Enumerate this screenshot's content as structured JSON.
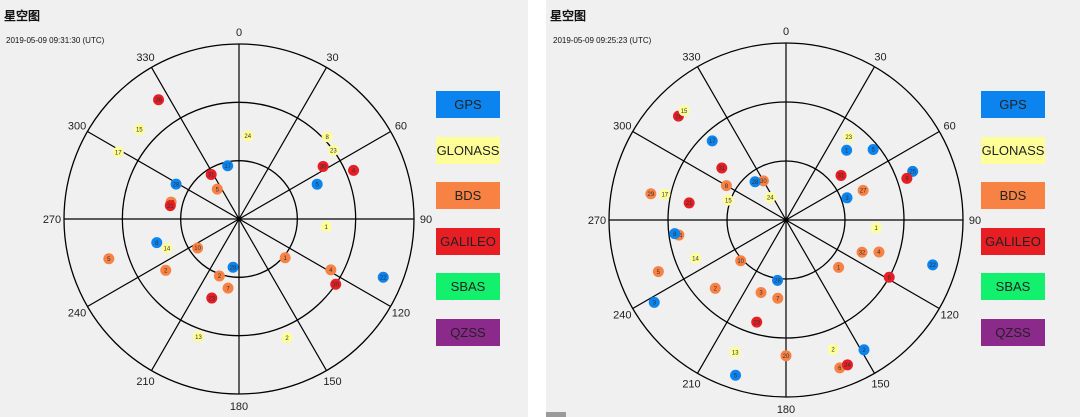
{
  "left": {
    "title": "星空图",
    "timestamp": "2019-05-09 09:31:30 (UTC)",
    "satellites": [
      {
        "id": "24",
        "system": "GLONASS",
        "azimuth": 6,
        "elevation": 47
      },
      {
        "id": "17",
        "system": "GPS",
        "azimuth": 348,
        "elevation": 62
      },
      {
        "id": "28",
        "system": "GPS",
        "azimuth": 299,
        "elevation": 53
      },
      {
        "id": "31",
        "system": "GALILEO",
        "azimuth": 328,
        "elevation": 63
      },
      {
        "id": "5",
        "system": "BDS",
        "azimuth": 324,
        "elevation": 71
      },
      {
        "id": "26",
        "system": "GALILEO",
        "azimuth": 326,
        "elevation": 16
      },
      {
        "id": "15",
        "system": "GLONASS",
        "azimuth": 312,
        "elevation": 21
      },
      {
        "id": "17",
        "system": "GLONASS",
        "azimuth": 299,
        "elevation": 19
      },
      {
        "id": "13",
        "system": "BDS",
        "azimuth": 284,
        "elevation": 54
      },
      {
        "id": "21",
        "system": "GALILEO",
        "azimuth": 281,
        "elevation": 54
      },
      {
        "id": "8",
        "system": "GPS",
        "azimuth": 254,
        "elevation": 46
      },
      {
        "id": "14",
        "system": "GLONASS",
        "azimuth": 248,
        "elevation": 50
      },
      {
        "id": "5",
        "system": "BDS",
        "azimuth": 253,
        "elevation": 20
      },
      {
        "id": "10",
        "system": "BDS",
        "azimuth": 235,
        "elevation": 64
      },
      {
        "id": "2",
        "system": "BDS",
        "azimuth": 235,
        "elevation": 44
      },
      {
        "id": "28",
        "system": "GPS",
        "azimuth": 187,
        "elevation": 65
      },
      {
        "id": "2",
        "system": "BDS",
        "azimuth": 199,
        "elevation": 59
      },
      {
        "id": "7",
        "system": "BDS",
        "azimuth": 189,
        "elevation": 54
      },
      {
        "id": "23",
        "system": "GALILEO",
        "azimuth": 199,
        "elevation": 47
      },
      {
        "id": "13",
        "system": "GLONASS",
        "azimuth": 199,
        "elevation": 26
      },
      {
        "id": "2",
        "system": "GLONASS",
        "azimuth": 158,
        "elevation": 24
      },
      {
        "id": "1",
        "system": "BDS",
        "azimuth": 130,
        "elevation": 59
      },
      {
        "id": "4",
        "system": "BDS",
        "azimuth": 119,
        "elevation": 36
      },
      {
        "id": "30",
        "system": "GALILEO",
        "azimuth": 124,
        "elevation": 30
      },
      {
        "id": "22",
        "system": "GPS",
        "azimuth": 112,
        "elevation": 10
      },
      {
        "id": "1",
        "system": "GLONASS",
        "azimuth": 95,
        "elevation": 45
      },
      {
        "id": "8",
        "system": "GLONASS",
        "azimuth": 47,
        "elevation": 28
      },
      {
        "id": "23",
        "system": "GLONASS",
        "azimuth": 54,
        "elevation": 30
      },
      {
        "id": "30",
        "system": "GALILEO",
        "azimuth": 58,
        "elevation": 39
      },
      {
        "id": "5",
        "system": "GPS",
        "azimuth": 66,
        "elevation": 46
      },
      {
        "id": "4",
        "system": "GALILEO",
        "azimuth": 67,
        "elevation": 26
      }
    ]
  },
  "right": {
    "title": "星空图",
    "timestamp": "2019-05-09 09:25:23 (UTC)",
    "satellites": [
      {
        "id": "24",
        "system": "GLONASS",
        "azimuth": 325,
        "elevation": 76
      },
      {
        "id": "30",
        "system": "BDS",
        "azimuth": 330,
        "elevation": 67
      },
      {
        "id": "17",
        "system": "GPS",
        "azimuth": 317,
        "elevation": 35
      },
      {
        "id": "15",
        "system": "GLONASS",
        "azimuth": 289,
        "elevation": 59
      },
      {
        "id": "31",
        "system": "GALILEO",
        "azimuth": 309,
        "elevation": 48
      },
      {
        "id": "8",
        "system": "BDS",
        "azimuth": 300,
        "elevation": 55
      },
      {
        "id": "28",
        "system": "GPS",
        "azimuth": 321,
        "elevation": 65
      },
      {
        "id": "26",
        "system": "GALILEO",
        "azimuth": 314,
        "elevation": 14
      },
      {
        "id": "15",
        "system": "GLONASS",
        "azimuth": 317,
        "elevation": 14
      },
      {
        "id": "17",
        "system": "GLONASS",
        "azimuth": 282,
        "elevation": 27
      },
      {
        "id": "29",
        "system": "BDS",
        "azimuth": 281,
        "elevation": 20
      },
      {
        "id": "21",
        "system": "GALILEO",
        "azimuth": 280,
        "elevation": 40
      },
      {
        "id": "34",
        "system": "BDS",
        "azimuth": 262,
        "elevation": 35
      },
      {
        "id": "8",
        "system": "GPS",
        "azimuth": 263,
        "elevation": 33
      },
      {
        "id": "14",
        "system": "GLONASS",
        "azimuth": 247,
        "elevation": 40
      },
      {
        "id": "5",
        "system": "BDS",
        "azimuth": 248,
        "elevation": 20
      },
      {
        "id": "3",
        "system": "GPS",
        "azimuth": 238,
        "elevation": 11
      },
      {
        "id": "10",
        "system": "BDS",
        "azimuth": 228,
        "elevation": 59
      },
      {
        "id": "2",
        "system": "BDS",
        "azimuth": 226,
        "elevation": 40
      },
      {
        "id": "28",
        "system": "GPS",
        "azimuth": 188,
        "elevation": 59
      },
      {
        "id": "3",
        "system": "BDS",
        "azimuth": 199,
        "elevation": 51
      },
      {
        "id": "7",
        "system": "BDS",
        "azimuth": 186,
        "elevation": 50
      },
      {
        "id": "23",
        "system": "GALILEO",
        "azimuth": 196,
        "elevation": 36
      },
      {
        "id": "13",
        "system": "GLONASS",
        "azimuth": 201,
        "elevation": 18
      },
      {
        "id": "20",
        "system": "BDS",
        "azimuth": 180,
        "elevation": 21
      },
      {
        "id": "5",
        "system": "GPS",
        "azimuth": 198,
        "elevation": 7
      },
      {
        "id": "2",
        "system": "GLONASS",
        "azimuth": 160,
        "elevation": 20
      },
      {
        "id": "6",
        "system": "BDS",
        "azimuth": 160,
        "elevation": 10
      },
      {
        "id": "24",
        "system": "GALILEO",
        "azimuth": 157,
        "elevation": 10
      },
      {
        "id": "2",
        "system": "GPS",
        "azimuth": 149,
        "elevation": 13
      },
      {
        "id": "1",
        "system": "BDS",
        "azimuth": 132,
        "elevation": 54
      },
      {
        "id": "32",
        "system": "BDS",
        "azimuth": 113,
        "elevation": 48
      },
      {
        "id": "4",
        "system": "BDS",
        "azimuth": 109,
        "elevation": 40
      },
      {
        "id": "1",
        "system": "GLONASS",
        "azimuth": 95,
        "elevation": 44
      },
      {
        "id": "8",
        "system": "GALILEO",
        "azimuth": 119,
        "elevation": 30
      },
      {
        "id": "22",
        "system": "GPS",
        "azimuth": 107,
        "elevation": 12
      },
      {
        "id": "1",
        "system": "GPS",
        "azimuth": 41,
        "elevation": 43
      },
      {
        "id": "5",
        "system": "GPS",
        "azimuth": 51,
        "elevation": 33
      },
      {
        "id": "23",
        "system": "GLONASS",
        "azimuth": 37,
        "elevation": 37
      },
      {
        "id": "31",
        "system": "GALILEO",
        "azimuth": 51,
        "elevation": 54
      },
      {
        "id": "27",
        "system": "BDS",
        "azimuth": 69,
        "elevation": 48
      },
      {
        "id": "3",
        "system": "GPS",
        "azimuth": 70,
        "elevation": 57
      },
      {
        "id": "25",
        "system": "GPS",
        "azimuth": 69,
        "elevation": 21
      },
      {
        "id": "9",
        "system": "GALILEO",
        "azimuth": 71,
        "elevation": 25
      }
    ]
  },
  "azimuth_labels": [
    "0",
    "30",
    "60",
    "90",
    "120",
    "150",
    "180",
    "210",
    "240",
    "270",
    "300",
    "330"
  ],
  "legend": [
    {
      "label": "GPS",
      "color": "#0b84f0"
    },
    {
      "label": "GLONASS",
      "color": "#ffff99"
    },
    {
      "label": "BDS",
      "color": "#f88144"
    },
    {
      "label": "GALILEO",
      "color": "#e81e25"
    },
    {
      "label": "SBAS",
      "color": "#12f06e"
    },
    {
      "label": "QZSS",
      "color": "#8b2a8b"
    }
  ]
}
